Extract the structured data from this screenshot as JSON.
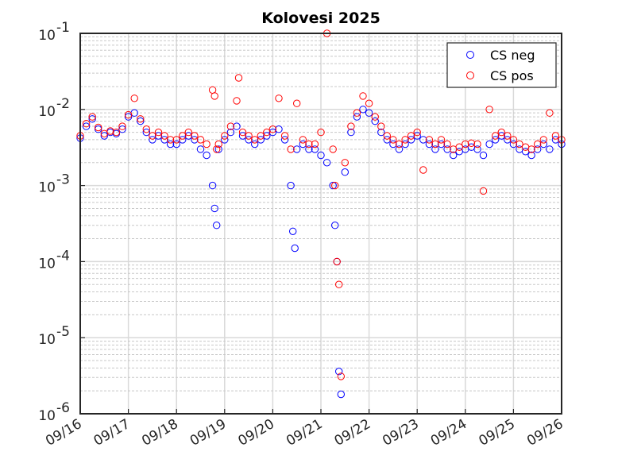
{
  "chart_data": {
    "type": "scatter",
    "title": "Kolovesi 2025",
    "xlabel": "",
    "ylabel": "",
    "x_ticks": [
      "09/16",
      "09/17",
      "09/18",
      "09/19",
      "09/20",
      "09/21",
      "09/22",
      "09/23",
      "09/24",
      "09/25",
      "09/26"
    ],
    "xlim": [
      "2025-09-16",
      "2025-09-26"
    ],
    "y_scale": "log",
    "ylim": [
      1e-06,
      0.1
    ],
    "y_ticks": [
      {
        "base": "10",
        "exp": "-6"
      },
      {
        "base": "10",
        "exp": "-5"
      },
      {
        "base": "10",
        "exp": "-4"
      },
      {
        "base": "10",
        "exp": "-3"
      },
      {
        "base": "10",
        "exp": "-2"
      },
      {
        "base": "10",
        "exp": "-1"
      }
    ],
    "grid": true,
    "minor_grid": true,
    "legend_position": "top-right",
    "series": [
      {
        "name": "CS neg",
        "color": "#0000ff",
        "marker": "open-circle",
        "points": [
          [
            "09/16 00:00",
            0.0042
          ],
          [
            "09/16 03:00",
            0.006
          ],
          [
            "09/16 06:00",
            0.0075
          ],
          [
            "09/16 09:00",
            0.0055
          ],
          [
            "09/16 12:00",
            0.0045
          ],
          [
            "09/16 15:00",
            0.005
          ],
          [
            "09/16 18:00",
            0.0048
          ],
          [
            "09/16 21:00",
            0.0055
          ],
          [
            "09/17 00:00",
            0.008
          ],
          [
            "09/17 03:00",
            0.009
          ],
          [
            "09/17 06:00",
            0.007
          ],
          [
            "09/17 09:00",
            0.005
          ],
          [
            "09/17 12:00",
            0.004
          ],
          [
            "09/17 15:00",
            0.0045
          ],
          [
            "09/17 18:00",
            0.004
          ],
          [
            "09/17 21:00",
            0.0035
          ],
          [
            "09/18 00:00",
            0.0035
          ],
          [
            "09/18 03:00",
            0.004
          ],
          [
            "09/18 06:00",
            0.0045
          ],
          [
            "09/18 09:00",
            0.004
          ],
          [
            "09/18 12:00",
            0.003
          ],
          [
            "09/18 15:00",
            0.0025
          ],
          [
            "09/18 18:00",
            0.001
          ],
          [
            "09/18 19:00",
            0.0005
          ],
          [
            "09/18 20:00",
            0.0003
          ],
          [
            "09/18 21:00",
            0.003
          ],
          [
            "09/19 00:00",
            0.004
          ],
          [
            "09/19 03:00",
            0.005
          ],
          [
            "09/19 06:00",
            0.006
          ],
          [
            "09/19 09:00",
            0.0045
          ],
          [
            "09/19 12:00",
            0.004
          ],
          [
            "09/19 15:00",
            0.0035
          ],
          [
            "09/19 18:00",
            0.004
          ],
          [
            "09/19 21:00",
            0.0045
          ],
          [
            "09/20 00:00",
            0.005
          ],
          [
            "09/20 03:00",
            0.0055
          ],
          [
            "09/20 06:00",
            0.004
          ],
          [
            "09/20 09:00",
            0.001
          ],
          [
            "09/20 10:00",
            0.00025
          ],
          [
            "09/20 11:00",
            0.00015
          ],
          [
            "09/20 12:00",
            0.003
          ],
          [
            "09/20 15:00",
            0.0035
          ],
          [
            "09/20 18:00",
            0.003
          ],
          [
            "09/20 21:00",
            0.003
          ],
          [
            "09/21 00:00",
            0.0025
          ],
          [
            "09/21 03:00",
            0.002
          ],
          [
            "09/21 06:00",
            0.001
          ],
          [
            "09/21 07:00",
            0.0003
          ],
          [
            "09/21 08:00",
            0.0001
          ],
          [
            "09/21 09:00",
            3.6e-06
          ],
          [
            "09/21 10:00",
            1.8e-06
          ],
          [
            "09/21 12:00",
            0.0015
          ],
          [
            "09/21 15:00",
            0.005
          ],
          [
            "09/21 18:00",
            0.008
          ],
          [
            "09/21 21:00",
            0.01
          ],
          [
            "09/22 00:00",
            0.009
          ],
          [
            "09/22 03:00",
            0.007
          ],
          [
            "09/22 06:00",
            0.005
          ],
          [
            "09/22 09:00",
            0.004
          ],
          [
            "09/22 12:00",
            0.0035
          ],
          [
            "09/22 15:00",
            0.003
          ],
          [
            "09/22 18:00",
            0.0035
          ],
          [
            "09/22 21:00",
            0.004
          ],
          [
            "09/23 00:00",
            0.0045
          ],
          [
            "09/23 03:00",
            0.004
          ],
          [
            "09/23 06:00",
            0.0035
          ],
          [
            "09/23 09:00",
            0.003
          ],
          [
            "09/23 12:00",
            0.0035
          ],
          [
            "09/23 15:00",
            0.003
          ],
          [
            "09/23 18:00",
            0.0025
          ],
          [
            "09/23 21:00",
            0.0028
          ],
          [
            "09/24 00:00",
            0.003
          ],
          [
            "09/24 03:00",
            0.0032
          ],
          [
            "09/24 06:00",
            0.003
          ],
          [
            "09/24 09:00",
            0.0025
          ],
          [
            "09/24 12:00",
            0.0035
          ],
          [
            "09/24 15:00",
            0.004
          ],
          [
            "09/24 18:00",
            0.0045
          ],
          [
            "09/24 21:00",
            0.004
          ],
          [
            "09/25 00:00",
            0.0035
          ],
          [
            "09/25 03:00",
            0.003
          ],
          [
            "09/25 06:00",
            0.0028
          ],
          [
            "09/25 09:00",
            0.0025
          ],
          [
            "09/25 12:00",
            0.003
          ],
          [
            "09/25 15:00",
            0.0035
          ],
          [
            "09/25 18:00",
            0.003
          ],
          [
            "09/25 21:00",
            0.004
          ],
          [
            "09/26 00:00",
            0.0035
          ]
        ]
      },
      {
        "name": "CS pos",
        "color": "#ff0000",
        "marker": "open-circle",
        "points": [
          [
            "09/16 00:00",
            0.0045
          ],
          [
            "09/16 03:00",
            0.0065
          ],
          [
            "09/16 06:00",
            0.008
          ],
          [
            "09/16 09:00",
            0.0058
          ],
          [
            "09/16 12:00",
            0.0048
          ],
          [
            "09/16 15:00",
            0.0052
          ],
          [
            "09/16 18:00",
            0.005
          ],
          [
            "09/16 21:00",
            0.006
          ],
          [
            "09/17 00:00",
            0.0085
          ],
          [
            "09/17 03:00",
            0.014
          ],
          [
            "09/17 06:00",
            0.0075
          ],
          [
            "09/17 09:00",
            0.0055
          ],
          [
            "09/17 12:00",
            0.0045
          ],
          [
            "09/17 15:00",
            0.005
          ],
          [
            "09/17 18:00",
            0.0045
          ],
          [
            "09/17 21:00",
            0.004
          ],
          [
            "09/18 00:00",
            0.004
          ],
          [
            "09/18 03:00",
            0.0045
          ],
          [
            "09/18 06:00",
            0.005
          ],
          [
            "09/18 09:00",
            0.0045
          ],
          [
            "09/18 12:00",
            0.004
          ],
          [
            "09/18 15:00",
            0.0035
          ],
          [
            "09/18 18:00",
            0.018
          ],
          [
            "09/18 19:00",
            0.015
          ],
          [
            "09/18 20:00",
            0.003
          ],
          [
            "09/18 21:00",
            0.0035
          ],
          [
            "09/19 00:00",
            0.0045
          ],
          [
            "09/19 03:00",
            0.006
          ],
          [
            "09/19 06:00",
            0.013
          ],
          [
            "09/19 07:00",
            0.026
          ],
          [
            "09/19 09:00",
            0.005
          ],
          [
            "09/19 12:00",
            0.0045
          ],
          [
            "09/19 15:00",
            0.004
          ],
          [
            "09/19 18:00",
            0.0045
          ],
          [
            "09/19 21:00",
            0.005
          ],
          [
            "09/20 00:00",
            0.0055
          ],
          [
            "09/20 03:00",
            0.014
          ],
          [
            "09/20 06:00",
            0.0045
          ],
          [
            "09/20 09:00",
            0.003
          ],
          [
            "09/20 12:00",
            0.012
          ],
          [
            "09/20 15:00",
            0.004
          ],
          [
            "09/20 18:00",
            0.0035
          ],
          [
            "09/20 21:00",
            0.0035
          ],
          [
            "09/21 00:00",
            0.005
          ],
          [
            "09/21 03:00",
            0.1
          ],
          [
            "09/21 06:00",
            0.003
          ],
          [
            "09/21 07:00",
            0.001
          ],
          [
            "09/21 08:00",
            0.0001
          ],
          [
            "09/21 09:00",
            5e-05
          ],
          [
            "09/21 10:00",
            3.1e-06
          ],
          [
            "09/21 12:00",
            0.002
          ],
          [
            "09/21 15:00",
            0.006
          ],
          [
            "09/21 18:00",
            0.009
          ],
          [
            "09/21 21:00",
            0.015
          ],
          [
            "09/22 00:00",
            0.012
          ],
          [
            "09/22 03:00",
            0.008
          ],
          [
            "09/22 06:00",
            0.006
          ],
          [
            "09/22 09:00",
            0.0045
          ],
          [
            "09/22 12:00",
            0.004
          ],
          [
            "09/22 15:00",
            0.0035
          ],
          [
            "09/22 18:00",
            0.004
          ],
          [
            "09/22 21:00",
            0.0045
          ],
          [
            "09/23 00:00",
            0.005
          ],
          [
            "09/23 03:00",
            0.0016
          ],
          [
            "09/23 06:00",
            0.004
          ],
          [
            "09/23 09:00",
            0.0035
          ],
          [
            "09/23 12:00",
            0.004
          ],
          [
            "09/23 15:00",
            0.0035
          ],
          [
            "09/23 18:00",
            0.003
          ],
          [
            "09/23 21:00",
            0.0032
          ],
          [
            "09/24 00:00",
            0.0035
          ],
          [
            "09/24 03:00",
            0.0036
          ],
          [
            "09/24 06:00",
            0.0035
          ],
          [
            "09/24 09:00",
            0.00085
          ],
          [
            "09/24 12:00",
            0.01
          ],
          [
            "09/24 15:00",
            0.0045
          ],
          [
            "09/24 18:00",
            0.005
          ],
          [
            "09/24 21:00",
            0.0045
          ],
          [
            "09/25 00:00",
            0.004
          ],
          [
            "09/25 03:00",
            0.0035
          ],
          [
            "09/25 06:00",
            0.0032
          ],
          [
            "09/25 09:00",
            0.003
          ],
          [
            "09/25 12:00",
            0.0035
          ],
          [
            "09/25 15:00",
            0.004
          ],
          [
            "09/25 18:00",
            0.009
          ],
          [
            "09/25 21:00",
            0.0045
          ],
          [
            "09/26 00:00",
            0.004
          ]
        ]
      }
    ]
  }
}
